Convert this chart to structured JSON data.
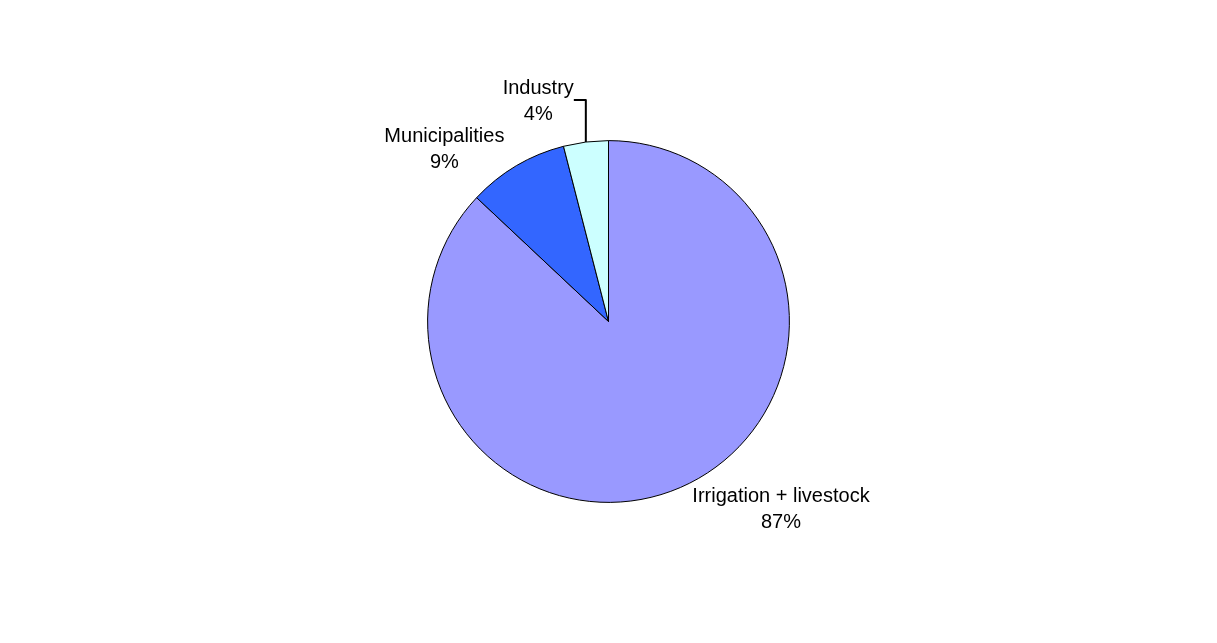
{
  "chart_data": {
    "type": "pie",
    "categories": [
      "Irrigation + livestock",
      "Municipalities",
      "Industry"
    ],
    "values": [
      87,
      9,
      4
    ],
    "colors": [
      "#9999ff",
      "#3366ff",
      "#ccffff"
    ],
    "value_labels": [
      "87%",
      "9%",
      "4%"
    ],
    "legend": false
  }
}
